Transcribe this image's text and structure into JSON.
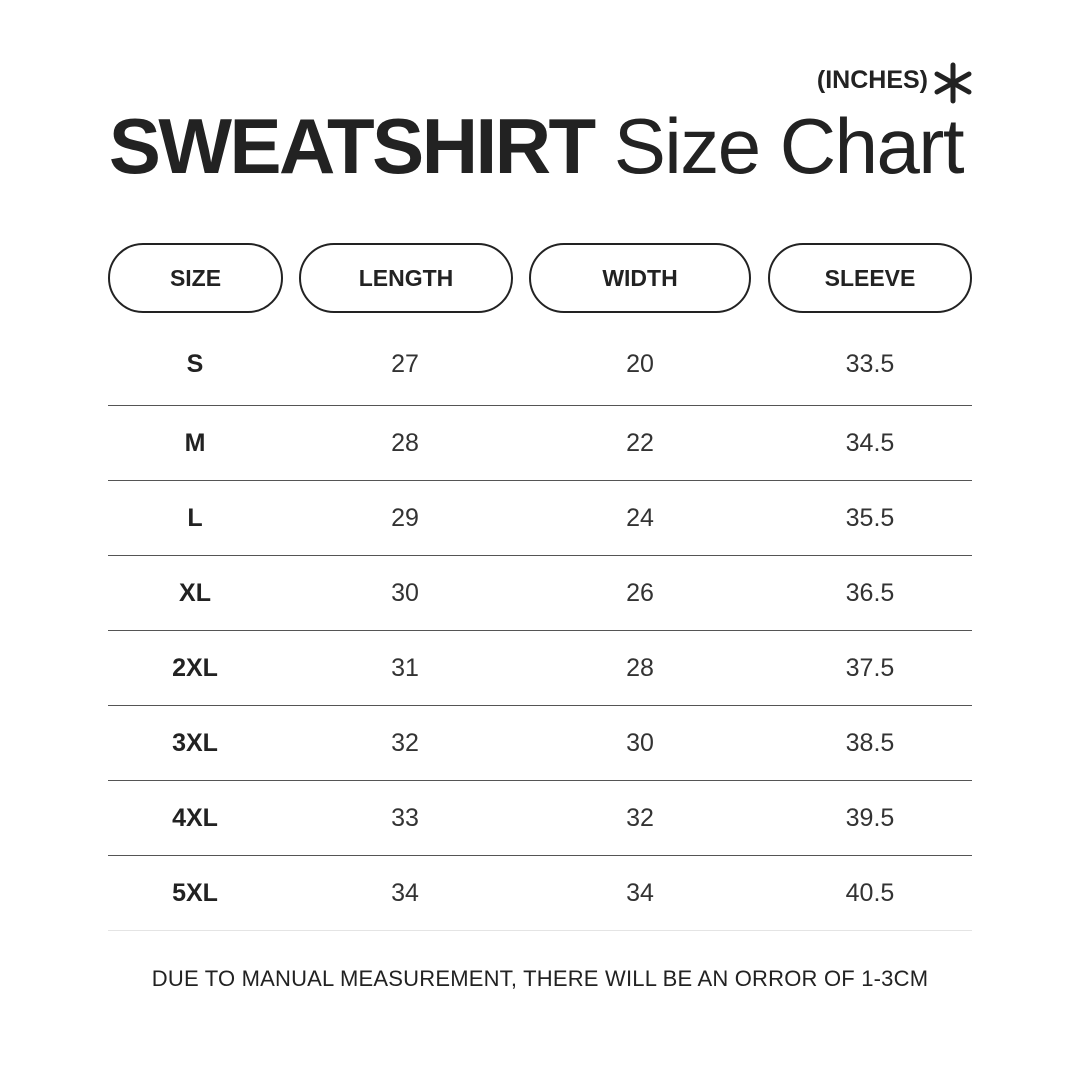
{
  "header": {
    "title_bold": "SWEATSHIRT",
    "title_light": "Size Chart",
    "unit": "(INCHES)",
    "unit_icon": "asterisk-icon"
  },
  "chart_data": {
    "type": "table",
    "columns": [
      "SIZE",
      "LENGTH",
      "WIDTH",
      "SLEEVE"
    ],
    "rows": [
      [
        "S",
        "27",
        "20",
        "33.5"
      ],
      [
        "M",
        "28",
        "22",
        "34.5"
      ],
      [
        "L",
        "29",
        "24",
        "35.5"
      ],
      [
        "XL",
        "30",
        "26",
        "36.5"
      ],
      [
        "2XL",
        "31",
        "28",
        "37.5"
      ],
      [
        "3XL",
        "32",
        "30",
        "38.5"
      ],
      [
        "4XL",
        "33",
        "32",
        "39.5"
      ],
      [
        "5XL",
        "34",
        "34",
        "40.5"
      ]
    ]
  },
  "footer": {
    "note": "DUE TO MANUAL MEASUREMENT, THERE WILL BE AN ORROR OF 1-3CM"
  },
  "colors": {
    "text": "#222222",
    "divider": "#555555",
    "background": "#ffffff"
  }
}
